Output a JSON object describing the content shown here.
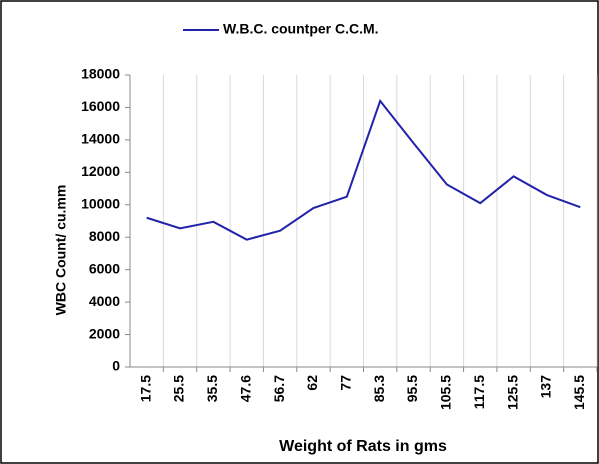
{
  "chart_data": {
    "type": "line",
    "legend": "top",
    "series": [
      {
        "name": "W.B.C. countper C.C.M.",
        "color": "#2222aa",
        "values": [
          9200,
          8550,
          8950,
          7850,
          8400,
          9800,
          10500,
          16400,
          13800,
          11250,
          10100,
          11750,
          10600,
          9850
        ]
      }
    ],
    "categories": [
      "17.5",
      "25.5",
      "35.5",
      "47.6",
      "56.7",
      "62",
      "77",
      "85.3",
      "95.5",
      "105.5",
      "117.5",
      "125.5",
      "137",
      "145.5"
    ],
    "ylim": [
      0,
      18000
    ],
    "yticks": [
      0,
      2000,
      4000,
      6000,
      8000,
      10000,
      12000,
      14000,
      16000,
      18000
    ],
    "ylabel": "WBC Count/ cu.mm",
    "xlabel": "Weight of Rats in gms",
    "grid": "x"
  }
}
